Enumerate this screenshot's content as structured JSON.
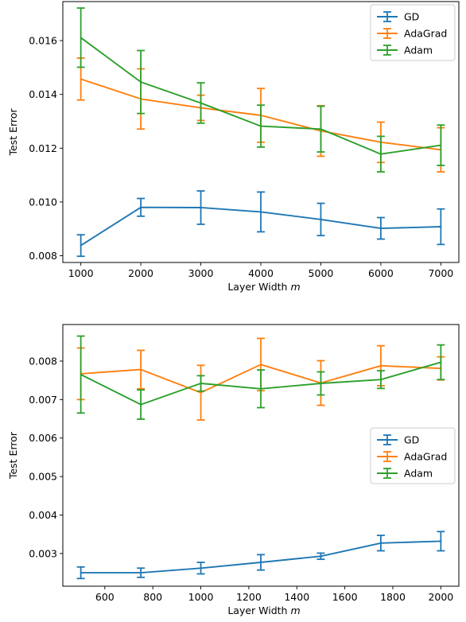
{
  "colors": {
    "GD": "#1f77b4",
    "AdaGrad": "#ff7f0e",
    "Adam": "#2ca02c"
  },
  "chart_data": [
    {
      "type": "line",
      "title": "",
      "xlabel": "Layer Width",
      "xlabel_var": "m",
      "ylabel": "Test Error",
      "xlim": [
        700,
        7300
      ],
      "ylim": [
        0.00775,
        0.01745
      ],
      "xticks": [
        1000,
        2000,
        3000,
        4000,
        5000,
        6000,
        7000
      ],
      "xtick_labels": [
        "1000",
        "2000",
        "3000",
        "4000",
        "5000",
        "6000",
        "7000"
      ],
      "yticks": [
        0.008,
        0.01,
        0.012,
        0.014,
        0.016
      ],
      "ytick_labels": [
        "0.008",
        "0.010",
        "0.012",
        "0.014",
        "0.016"
      ],
      "grid": false,
      "legend": "top-right",
      "x": [
        1000,
        2000,
        3000,
        4000,
        5000,
        6000,
        7000
      ],
      "series": [
        {
          "name": "GD",
          "color_key": "GD",
          "values": [
            0.00838,
            0.0098,
            0.00979,
            0.00963,
            0.00935,
            0.00902,
            0.00908
          ],
          "err": [
            0.0004,
            0.00033,
            0.00062,
            0.00074,
            0.0006,
            0.0004,
            0.00066
          ]
        },
        {
          "name": "AdaGrad",
          "color_key": "AdaGrad",
          "values": [
            0.01457,
            0.01383,
            0.0135,
            0.01322,
            0.01264,
            0.01222,
            0.01194
          ],
          "err": [
            0.00078,
            0.00112,
            0.00047,
            0.001,
            0.00094,
            0.00075,
            0.00082
          ]
        },
        {
          "name": "Adam",
          "color_key": "Adam",
          "values": [
            0.01611,
            0.01446,
            0.01368,
            0.01282,
            0.01271,
            0.01178,
            0.01211
          ],
          "err": [
            0.0011,
            0.00117,
            0.00075,
            0.00078,
            0.00085,
            0.00066,
            0.00075
          ]
        }
      ]
    },
    {
      "type": "line",
      "title": "",
      "xlabel": "Layer Width",
      "xlabel_var": "m",
      "ylabel": "Test Error",
      "xlim": [
        425,
        2075
      ],
      "ylim": [
        0.00215,
        0.00895
      ],
      "xticks": [
        600,
        800,
        1000,
        1200,
        1400,
        1600,
        1800,
        2000
      ],
      "xtick_labels": [
        "600",
        "800",
        "1000",
        "1200",
        "1400",
        "1600",
        "1800",
        "2000"
      ],
      "yticks": [
        0.003,
        0.004,
        0.005,
        0.006,
        0.007,
        0.008
      ],
      "ytick_labels": [
        "0.003",
        "0.004",
        "0.005",
        "0.006",
        "0.007",
        "0.008"
      ],
      "grid": false,
      "legend": "center-right",
      "x": [
        500,
        750,
        1000,
        1250,
        1500,
        1750,
        2000
      ],
      "series": [
        {
          "name": "GD",
          "color_key": "GD",
          "values": [
            0.0025,
            0.0025,
            0.00262,
            0.00277,
            0.00293,
            0.00327,
            0.00332
          ],
          "err": [
            0.00015,
            0.00012,
            0.00015,
            0.0002,
            8e-05,
            0.0002,
            0.00025
          ]
        },
        {
          "name": "AdaGrad",
          "color_key": "AdaGrad",
          "values": [
            0.00767,
            0.00778,
            0.00718,
            0.00791,
            0.00743,
            0.00788,
            0.00781
          ],
          "err": [
            0.00067,
            0.0005,
            0.00071,
            0.00068,
            0.00058,
            0.00052,
            0.0003
          ]
        },
        {
          "name": "Adam",
          "color_key": "Adam",
          "values": [
            0.00765,
            0.00687,
            0.00742,
            0.00728,
            0.00742,
            0.00752,
            0.00797
          ],
          "err": [
            0.001,
            0.00038,
            0.0002,
            0.00049,
            0.0003,
            0.00023,
            0.00045
          ]
        }
      ]
    }
  ]
}
